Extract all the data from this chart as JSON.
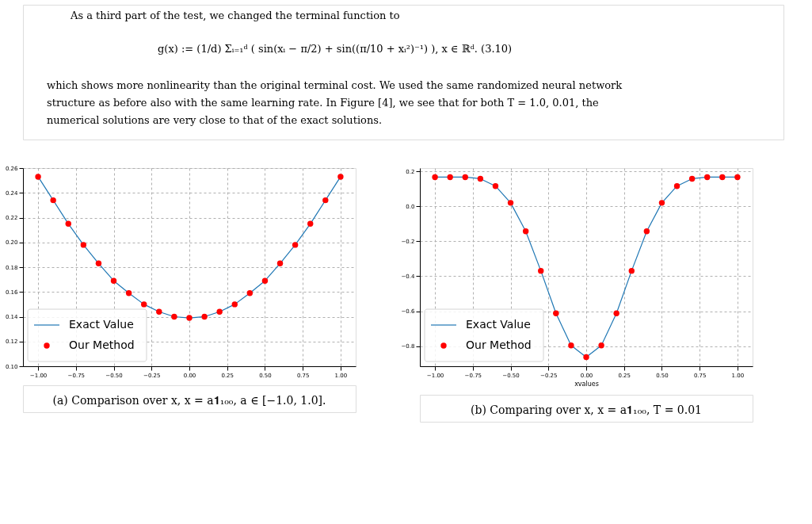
{
  "chart_data": [
    {
      "type": "line",
      "x": [
        -1.0,
        -0.9,
        -0.8,
        -0.7,
        -0.6,
        -0.5,
        -0.4,
        -0.3,
        -0.2,
        -0.1,
        0.0,
        0.1,
        0.2,
        0.3,
        0.4,
        0.5,
        0.6,
        0.7,
        0.8,
        0.9,
        1.0
      ],
      "series": [
        {
          "name": "Exact Value",
          "type": "line",
          "color": "#1f77b4",
          "values": [
            0.253,
            0.234,
            0.215,
            0.198,
            0.183,
            0.169,
            0.159,
            0.15,
            0.144,
            0.14,
            0.139,
            0.14,
            0.144,
            0.15,
            0.159,
            0.169,
            0.183,
            0.198,
            0.215,
            0.234,
            0.253
          ]
        },
        {
          "name": "Our Method",
          "type": "scatter",
          "color": "#ff0000",
          "marker": "circle",
          "values": [
            0.253,
            0.234,
            0.215,
            0.198,
            0.183,
            0.169,
            0.159,
            0.15,
            0.144,
            0.14,
            0.139,
            0.14,
            0.144,
            0.15,
            0.159,
            0.169,
            0.183,
            0.198,
            0.215,
            0.234,
            0.253
          ]
        }
      ],
      "xlim": [
        -1.1,
        1.1
      ],
      "xticks": [
        {
          "value": -1.0,
          "label": "−1.00"
        },
        {
          "value": -0.75,
          "label": "−0.75"
        },
        {
          "value": -0.5,
          "label": "−0.50"
        },
        {
          "value": -0.25,
          "label": "−0.25"
        },
        {
          "value": 0,
          "label": "0.00"
        },
        {
          "value": 0.25,
          "label": "0.25"
        },
        {
          "value": 0.5,
          "label": "0.50"
        },
        {
          "value": 0.75,
          "label": "0.75"
        },
        {
          "value": 1.0,
          "label": "1.00"
        }
      ],
      "ylim": [
        0.1,
        0.26
      ],
      "yticks": [
        {
          "value": 0.1,
          "label": "0.10"
        },
        {
          "value": 0.12,
          "label": "0.12"
        },
        {
          "value": 0.14,
          "label": "0.14"
        },
        {
          "value": 0.16,
          "label": "0.16"
        },
        {
          "value": 0.18,
          "label": "0.18"
        },
        {
          "value": 0.2,
          "label": "0.20"
        },
        {
          "value": 0.22,
          "label": "0.22"
        },
        {
          "value": 0.24,
          "label": "0.24"
        },
        {
          "value": 0.26,
          "label": "0.26"
        }
      ],
      "grid": true,
      "legend": "bottom left",
      "annotations": [
        "As a third part of the test, we changed the terminal function to",
        "g(x) := (1/d) Σᵢ₌₁ᵈ ( sin(xᵢ − π/2) + sin((π/10 + xᵢ²)⁻¹) ),          x ∈ ℝᵈ.          (3.10)",
        "which shows more nonlinearity than the original terminal cost. We used the same randomized neural network",
        "structure as before also with the same learning rate.  In Figure [4], we see that for both T = 1.0, 0.01, the",
        "numerical solutions are very close to that of the exact solutions.",
        "(a) Comparison over x, x = a𝟏₁₀₀, a ∈ [−1.0, 1.0]."
      ]
    },
    {
      "type": "line",
      "x": [
        -1.0,
        -0.9,
        -0.8,
        -0.7,
        -0.6,
        -0.5,
        -0.4,
        -0.3,
        -0.2,
        -0.1,
        0.0,
        0.1,
        0.2,
        0.3,
        0.4,
        0.5,
        0.6,
        0.7,
        0.8,
        0.9,
        1.0
      ],
      "series": [
        {
          "name": "Exact Value",
          "type": "line",
          "color": "#1f77b4",
          "values": [
            0.167,
            0.167,
            0.167,
            0.158,
            0.116,
            0.02,
            -0.143,
            -0.369,
            -0.612,
            -0.796,
            -0.863,
            -0.796,
            -0.612,
            -0.369,
            -0.143,
            0.02,
            0.116,
            0.158,
            0.167,
            0.167,
            0.167
          ]
        },
        {
          "name": "Our Method",
          "type": "scatter",
          "color": "#ff0000",
          "marker": "circle",
          "values": [
            0.167,
            0.167,
            0.167,
            0.158,
            0.116,
            0.02,
            -0.143,
            -0.369,
            -0.612,
            -0.796,
            -0.863,
            -0.796,
            -0.612,
            -0.369,
            -0.143,
            0.02,
            0.116,
            0.158,
            0.167,
            0.167,
            0.167
          ]
        }
      ],
      "xlabel": "xvalues",
      "xlim": [
        -1.1,
        1.1
      ],
      "xticks": [
        {
          "value": -1.0,
          "label": "−1.00"
        },
        {
          "value": -0.75,
          "label": "−0.75"
        },
        {
          "value": -0.5,
          "label": "−0.50"
        },
        {
          "value": -0.25,
          "label": "−0.25"
        },
        {
          "value": 0,
          "label": "0.00"
        },
        {
          "value": 0.25,
          "label": "0.25"
        },
        {
          "value": 0.5,
          "label": "0.50"
        },
        {
          "value": 0.75,
          "label": "0.75"
        },
        {
          "value": 1.0,
          "label": "1.00"
        }
      ],
      "ylim": [
        -0.915,
        0.219
      ],
      "yticks": [
        {
          "value": -0.8,
          "label": "−0.8"
        },
        {
          "value": -0.6,
          "label": "−0.6"
        },
        {
          "value": -0.4,
          "label": "−0.4"
        },
        {
          "value": -0.2,
          "label": "−0.2"
        },
        {
          "value": 0.0,
          "label": "0.0"
        },
        {
          "value": 0.2,
          "label": "0.2"
        }
      ],
      "grid": true,
      "legend": "bottom left",
      "annotations": [
        "(b) Comparing over x, x = a𝟏₁₀₀, T = 0.01"
      ]
    }
  ]
}
